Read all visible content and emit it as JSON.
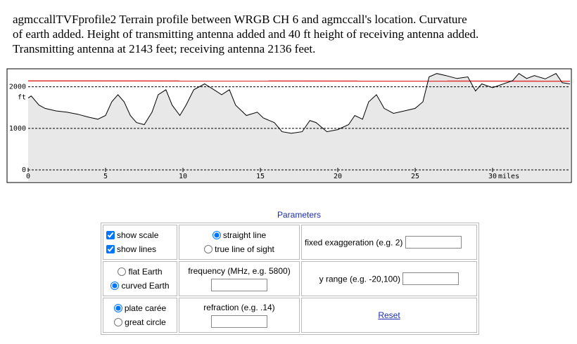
{
  "header": {
    "lines": [
      "agmccallTVFprofile2  Terrain profile between WRGB CH 6 and agmccall's location. Curvature",
      "of earth added.  Height of transmitting antenna added and 40 ft height of receiving antenna added.",
      "Transmitting antenna at 2143 feet; receiving antenna 2136 feet."
    ]
  },
  "chart_data": {
    "type": "area",
    "ylabel": "ft",
    "xlabel": "miles",
    "x": [
      0,
      0.2,
      0.7,
      1.1,
      1.8,
      2.5,
      3.2,
      3.9,
      4.5,
      5.0,
      5.4,
      5.8,
      6.2,
      6.6,
      7.0,
      7.5,
      8.0,
      8.4,
      8.9,
      9.3,
      9.8,
      10.2,
      10.7,
      11.4,
      11.8,
      12.5,
      13.0,
      13.4,
      14.1,
      14.8,
      15.2,
      15.9,
      16.4,
      17.0,
      17.7,
      18.2,
      18.6,
      19.3,
      20.0,
      20.7,
      21.1,
      21.6,
      22.0,
      22.5,
      23.0,
      23.6,
      24.3,
      25.0,
      25.5,
      25.9,
      26.4,
      27.0,
      27.7,
      28.4,
      28.9,
      29.3,
      30.0,
      30.7,
      31.3,
      31.7,
      32.2,
      32.7,
      33.4,
      34.1,
      34.5,
      35.0
    ],
    "values": [
      1730,
      1780,
      1560,
      1480,
      1420,
      1390,
      1340,
      1270,
      1220,
      1310,
      1640,
      1810,
      1640,
      1310,
      1140,
      1090,
      1390,
      1810,
      1930,
      1560,
      1310,
      1560,
      1930,
      2070,
      1980,
      1810,
      1930,
      1560,
      1310,
      1390,
      1250,
      1140,
      920,
      880,
      920,
      1190,
      1140,
      920,
      970,
      1090,
      1310,
      1220,
      1640,
      1810,
      1480,
      1360,
      1420,
      1480,
      1640,
      2240,
      2320,
      2270,
      2200,
      2240,
      1900,
      2070,
      1980,
      2070,
      2150,
      2320,
      2200,
      2270,
      2190,
      2320,
      2100,
      2070
    ],
    "color": "#000000",
    "fill": "#e8e8e8",
    "sight_line": {
      "x": [
        0,
        35
      ],
      "values": [
        2143,
        2136
      ],
      "color": "#e03030"
    },
    "xlim": [
      0,
      35
    ],
    "ylim": [
      -270,
      2400
    ],
    "xticks": [
      0,
      5,
      10,
      15,
      20,
      25,
      30
    ],
    "yticks": [
      0,
      1000,
      2000
    ],
    "grid": true
  },
  "parameters": {
    "title": "Parameters",
    "show_scale": "show scale",
    "show_lines": "show lines",
    "straight_line": "straight line",
    "true_line_of_sight": "true line of sight",
    "fixed_exaggeration": "fixed exaggeration (e.g. 2)",
    "flat_earth": "flat Earth",
    "curved_earth": "curved Earth",
    "frequency": "frequency (MHz, e.g. 5800)",
    "y_range": "y range (e.g. -20,100)",
    "plate_carree": "plate carée",
    "great_circle": "great circle",
    "refraction": "refraction (e.g. .14)",
    "reset": "Reset"
  }
}
